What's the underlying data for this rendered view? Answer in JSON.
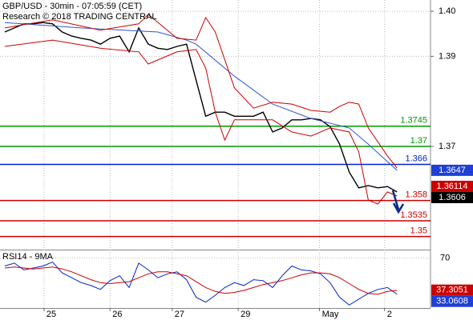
{
  "chart_data": {
    "type": "line",
    "title": "GBP/USD - 30min - 07:05:59 (CET)",
    "subtitle": "Research © 2018 TRADING CENTRAL",
    "xlim": [
      -0.5,
      44.5
    ],
    "xticks": [
      {
        "value": 4.1,
        "label": "25"
      },
      {
        "value": 11,
        "label": "26"
      },
      {
        "value": 17.5,
        "label": "27"
      },
      {
        "value": 24.4,
        "label": "29"
      },
      {
        "value": 32.9,
        "label": "May"
      },
      {
        "value": 39.7,
        "label": "2"
      }
    ],
    "ylim": [
      1.3471,
      1.4025
    ],
    "yticks": [
      {
        "value": 1.4,
        "label": "1.40"
      },
      1.39,
      1.37
    ],
    "grid": true,
    "series": [
      {
        "color": "#000000",
        "x": [
          0,
          1,
          2,
          3,
          4,
          5,
          6,
          7,
          8,
          9,
          10,
          11,
          12,
          13,
          14,
          15,
          16,
          17,
          18,
          19,
          20,
          21,
          22,
          23,
          24,
          25,
          26,
          27,
          28,
          29,
          30,
          31,
          32,
          33,
          34,
          35,
          36,
          37,
          38,
          39,
          40,
          41
        ],
        "values": [
          1.3954,
          1.3963,
          1.3972,
          1.3972,
          1.3975,
          1.3972,
          1.3954,
          1.3945,
          1.394,
          1.3936,
          1.3927,
          1.394,
          1.3945,
          1.391,
          1.3963,
          1.3927,
          1.3918,
          1.3915,
          1.3922,
          1.3927,
          1.3847,
          1.3767,
          1.3776,
          1.3776,
          1.3767,
          1.3767,
          1.3767,
          1.3776,
          1.3732,
          1.3741,
          1.3759,
          1.3759,
          1.3762,
          1.3759,
          1.3744,
          1.3705,
          1.3643,
          1.3608,
          1.3613,
          1.3608,
          1.3611,
          1.3599
        ]
      },
      {
        "color": "#3355cc",
        "x": [
          0,
          8,
          16,
          19,
          20,
          24,
          28,
          32,
          36,
          38,
          41
        ],
        "values": [
          1.3975,
          1.3963,
          1.3954,
          1.3936,
          1.3927,
          1.3856,
          1.3794,
          1.3762,
          1.3741,
          1.3705,
          1.3647
        ]
      },
      {
        "color": "#cc0000",
        "x": [
          0,
          5,
          10,
          14,
          15,
          18,
          20,
          21,
          22,
          24,
          26,
          28,
          30,
          32,
          34,
          35,
          36,
          37,
          38,
          40,
          41
        ],
        "values": [
          1.3963,
          1.3981,
          1.3958,
          1.3972,
          1.3993,
          1.394,
          1.3936,
          1.3986,
          1.3954,
          1.383,
          1.3785,
          1.3798,
          1.3794,
          1.378,
          1.3776,
          1.3789,
          1.3798,
          1.3794,
          1.3741,
          1.3679,
          1.3652
        ]
      },
      {
        "color": "#cc0000",
        "x": [
          0,
          5,
          10,
          14,
          15,
          18,
          20,
          21,
          22,
          23,
          24,
          26,
          28,
          30,
          32,
          34,
          36,
          37,
          38,
          39,
          40,
          41
        ],
        "values": [
          1.3922,
          1.3936,
          1.3918,
          1.391,
          1.3883,
          1.391,
          1.3915,
          1.3874,
          1.3776,
          1.3714,
          1.3759,
          1.3759,
          1.3759,
          1.3732,
          1.3723,
          1.3741,
          1.3732,
          1.3688,
          1.3581,
          1.3572,
          1.3599,
          1.359
        ]
      }
    ],
    "levels": [
      {
        "value": 1.3745,
        "color": "#009900"
      },
      {
        "value": 1.37,
        "color": "#009900"
      },
      {
        "value": 1.366,
        "color": "#0022cc"
      },
      {
        "value": 1.358,
        "color": "#cc0000"
      },
      {
        "value": 1.3535,
        "color": "#cc0000"
      },
      {
        "value": 1.35,
        "color": "#cc0000"
      }
    ],
    "price_markers": [
      {
        "value": 1.3647,
        "color": "#1f3fd6"
      },
      {
        "value": 1.36114,
        "color": "#cc0000"
      },
      {
        "value": 1.3606,
        "color": "#000000"
      }
    ],
    "rsi": {
      "title": "RSI14 - 9MA",
      "ylim": [
        19,
        78
      ],
      "yticks": [
        70
      ],
      "series": [
        {
          "color": "#0022cc",
          "values": [
            62,
            65,
            58,
            60,
            62,
            66,
            55,
            50,
            45,
            42,
            38,
            47,
            52,
            40,
            65,
            58,
            50,
            54,
            56,
            48,
            30,
            25,
            32,
            40,
            45,
            42,
            48,
            47,
            40,
            52,
            62,
            58,
            57,
            54,
            45,
            30,
            22,
            28,
            34,
            38,
            40,
            33
          ]
        },
        {
          "color": "#cc0000",
          "values": [
            60,
            61,
            60,
            59,
            60,
            61,
            59,
            56,
            52,
            48,
            45,
            44,
            45,
            46,
            50,
            54,
            56,
            56,
            54,
            52,
            46,
            40,
            36,
            34,
            35,
            37,
            40,
            43,
            45,
            47,
            50,
            53,
            55,
            55,
            54,
            50,
            44,
            38,
            34,
            33,
            36,
            37
          ]
        }
      ],
      "markers": [
        {
          "value": 37.3051,
          "color": "#cc0000"
        },
        {
          "value": 33.0608,
          "color": "#1f3fd6"
        }
      ]
    }
  }
}
